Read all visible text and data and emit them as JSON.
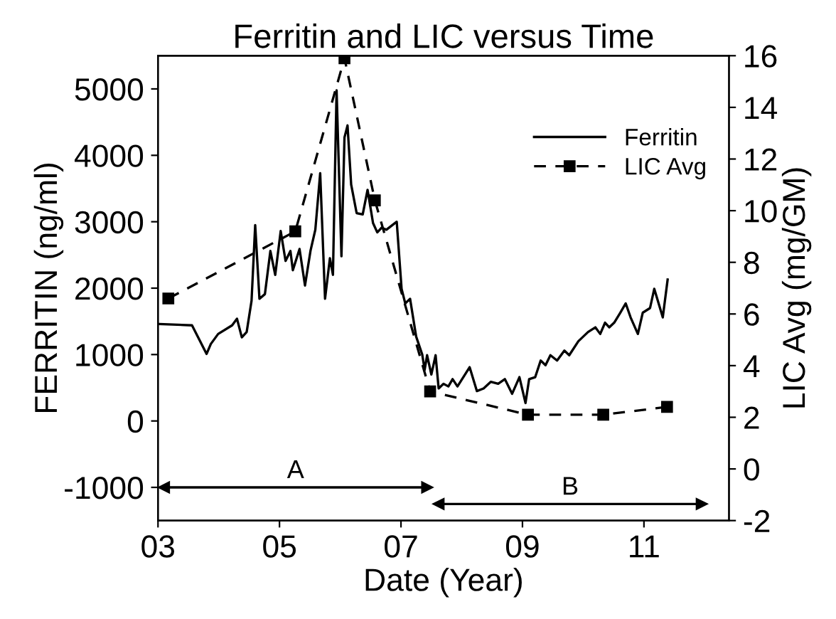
{
  "chart_data": {
    "type": "line",
    "title": "Ferritin and LIC versus Time",
    "xlabel": "Date (Year)",
    "ylabel": "FERRITIN (ng/ml)",
    "y2label": "LIC Avg (mg/GM)",
    "xlim": [
      3,
      12.4
    ],
    "xticks": [
      {
        "value": 3,
        "label": "03"
      },
      {
        "value": 5,
        "label": "05"
      },
      {
        "value": 7,
        "label": "07"
      },
      {
        "value": 9,
        "label": "09"
      },
      {
        "value": 11,
        "label": "11"
      }
    ],
    "ylim": [
      -1500,
      5500
    ],
    "yticks": [
      -1000,
      0,
      1000,
      2000,
      3000,
      4000,
      5000
    ],
    "y2lim": [
      -2,
      16
    ],
    "y2ticks": [
      -2,
      0,
      2,
      4,
      6,
      8,
      10,
      12,
      14,
      16
    ],
    "legend": "top right",
    "grid": false,
    "series": [
      {
        "name": "Ferritin",
        "color": "#000000",
        "marker": "none",
        "line_style": "solid",
        "x": [
          3.02,
          3.56,
          3.8,
          3.87,
          3.99,
          4.22,
          4.3,
          4.38,
          4.46,
          4.54,
          4.6,
          4.67,
          4.76,
          4.85,
          4.93,
          5.02,
          5.1,
          5.18,
          5.22,
          5.33,
          5.42,
          5.51,
          5.59,
          5.67,
          5.75,
          5.83,
          5.88,
          5.94,
          6.02,
          6.07,
          6.12,
          6.18,
          6.27,
          6.37,
          6.45,
          6.54,
          6.61,
          6.68,
          6.76,
          6.93,
          7.01,
          7.07,
          7.15,
          7.25,
          7.35,
          7.39,
          7.43,
          7.5,
          7.57,
          7.62,
          7.7,
          7.78,
          7.85,
          7.93,
          8.13,
          8.25,
          8.36,
          8.48,
          8.6,
          8.71,
          8.83,
          8.95,
          9.05,
          9.11,
          9.21,
          9.3,
          9.38,
          9.46,
          9.57,
          9.69,
          9.77,
          9.92,
          10.08,
          10.2,
          10.28,
          10.36,
          10.43,
          10.51,
          10.61,
          10.7,
          10.78,
          10.9,
          10.98,
          11.1,
          11.17,
          11.31,
          11.39
        ],
        "values": [
          1460,
          1440,
          1010,
          1160,
          1310,
          1440,
          1540,
          1260,
          1340,
          1810,
          2950,
          1840,
          1910,
          2560,
          2200,
          2860,
          2410,
          2560,
          2270,
          2590,
          2040,
          2560,
          2880,
          3730,
          1840,
          2450,
          2200,
          4980,
          2480,
          4270,
          4450,
          3560,
          3130,
          3110,
          3480,
          2980,
          2840,
          2910,
          2880,
          3000,
          1990,
          1770,
          1840,
          1270,
          1000,
          770,
          990,
          700,
          990,
          490,
          560,
          520,
          630,
          520,
          810,
          450,
          490,
          590,
          560,
          630,
          410,
          660,
          270,
          630,
          660,
          910,
          840,
          990,
          910,
          1060,
          990,
          1200,
          1340,
          1410,
          1310,
          1480,
          1410,
          1480,
          1630,
          1770,
          1560,
          1310,
          1630,
          1700,
          1990,
          1560,
          2130
        ]
      },
      {
        "name": "LIC Avg",
        "color": "#000000",
        "axis": "y2",
        "marker": "square",
        "line_style": "dashed",
        "x": [
          3.17,
          5.26,
          6.07,
          6.57,
          7.48,
          9.09,
          10.33,
          11.38
        ],
        "values": [
          6.6,
          9.2,
          15.9,
          10.4,
          3.0,
          2.1,
          2.1,
          2.4
        ]
      },
      {
        "color": "#000000",
        "marker": "triangle",
        "line_style": "solid",
        "x": [
          3.1,
          7.43
        ],
        "values": [
          -1000,
          -1000
        ]
      },
      {
        "color": "#000000",
        "marker": "triangle",
        "line_style": "solid",
        "x": [
          7.62,
          11.95
        ],
        "values": [
          -1250,
          -1250
        ]
      }
    ],
    "annotations": [
      "A",
      "B"
    ]
  }
}
